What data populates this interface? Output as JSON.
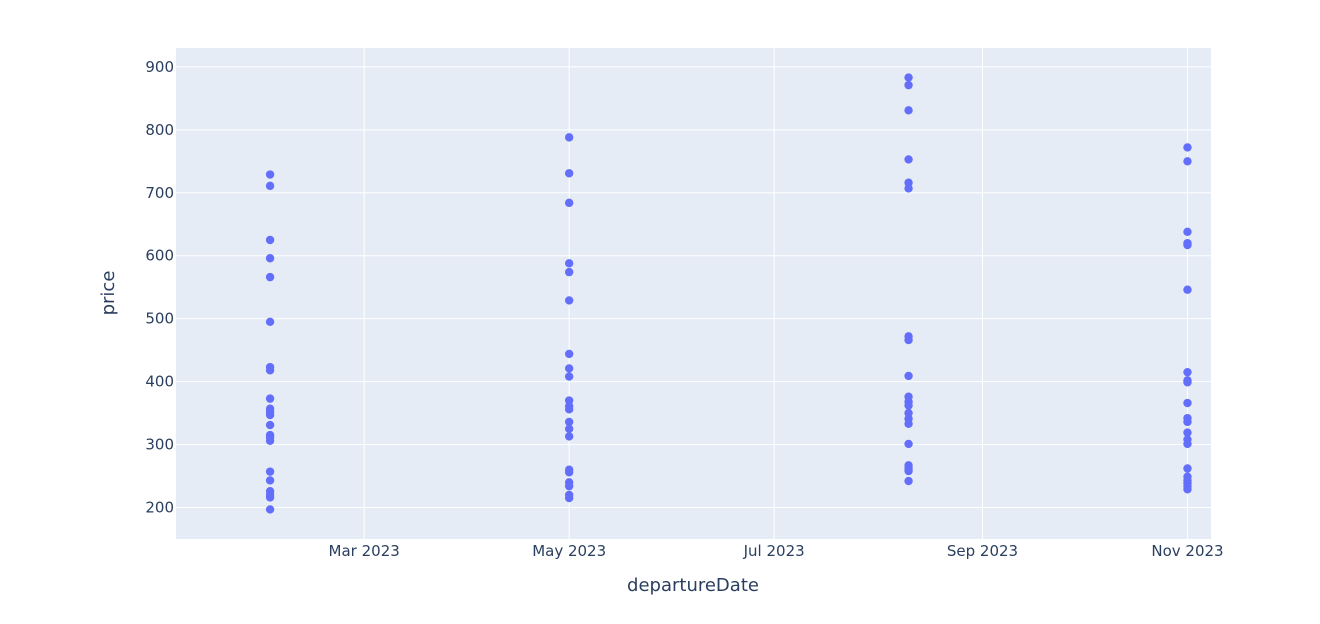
{
  "chart_data": {
    "type": "scatter",
    "title": "",
    "xlabel": "departureDate",
    "ylabel": "price",
    "xlim": [
      "2023-01-04",
      "2023-11-08"
    ],
    "ylim": [
      150,
      930
    ],
    "grid": true,
    "colors": {
      "marker": "#636efa",
      "plot_bg": "#e5ecf6",
      "grid": "#ffffff",
      "text": "#2a3f5f"
    },
    "x_ticks": [
      {
        "date": "2023-03-01",
        "label": "Mar 2023"
      },
      {
        "date": "2023-05-01",
        "label": "May 2023"
      },
      {
        "date": "2023-07-01",
        "label": "Jul 2023"
      },
      {
        "date": "2023-09-01",
        "label": "Sep 2023"
      },
      {
        "date": "2023-11-01",
        "label": "Nov 2023"
      }
    ],
    "y_ticks": [
      200,
      300,
      400,
      500,
      600,
      700,
      800,
      900
    ],
    "series": [
      {
        "points": [
          {
            "x": "2023-02-01",
            "y": 729
          },
          {
            "x": "2023-02-01",
            "y": 711
          },
          {
            "x": "2023-02-01",
            "y": 625
          },
          {
            "x": "2023-02-01",
            "y": 596
          },
          {
            "x": "2023-02-01",
            "y": 566
          },
          {
            "x": "2023-02-01",
            "y": 495
          },
          {
            "x": "2023-02-01",
            "y": 423
          },
          {
            "x": "2023-02-01",
            "y": 418
          },
          {
            "x": "2023-02-01",
            "y": 373
          },
          {
            "x": "2023-02-01",
            "y": 357
          },
          {
            "x": "2023-02-01",
            "y": 352
          },
          {
            "x": "2023-02-01",
            "y": 347
          },
          {
            "x": "2023-02-01",
            "y": 331
          },
          {
            "x": "2023-02-01",
            "y": 315
          },
          {
            "x": "2023-02-01",
            "y": 311
          },
          {
            "x": "2023-02-01",
            "y": 306
          },
          {
            "x": "2023-02-01",
            "y": 257
          },
          {
            "x": "2023-02-01",
            "y": 243
          },
          {
            "x": "2023-02-01",
            "y": 226
          },
          {
            "x": "2023-02-01",
            "y": 221
          },
          {
            "x": "2023-02-01",
            "y": 216
          },
          {
            "x": "2023-02-01",
            "y": 197
          },
          {
            "x": "2023-05-01",
            "y": 788
          },
          {
            "x": "2023-05-01",
            "y": 731
          },
          {
            "x": "2023-05-01",
            "y": 684
          },
          {
            "x": "2023-05-01",
            "y": 588
          },
          {
            "x": "2023-05-01",
            "y": 574
          },
          {
            "x": "2023-05-01",
            "y": 529
          },
          {
            "x": "2023-05-01",
            "y": 444
          },
          {
            "x": "2023-05-01",
            "y": 421
          },
          {
            "x": "2023-05-01",
            "y": 408
          },
          {
            "x": "2023-05-01",
            "y": 370
          },
          {
            "x": "2023-05-01",
            "y": 361
          },
          {
            "x": "2023-05-01",
            "y": 356
          },
          {
            "x": "2023-05-01",
            "y": 336
          },
          {
            "x": "2023-05-01",
            "y": 325
          },
          {
            "x": "2023-05-01",
            "y": 313
          },
          {
            "x": "2023-05-01",
            "y": 260
          },
          {
            "x": "2023-05-01",
            "y": 256
          },
          {
            "x": "2023-05-01",
            "y": 240
          },
          {
            "x": "2023-05-01",
            "y": 234
          },
          {
            "x": "2023-05-01",
            "y": 220
          },
          {
            "x": "2023-05-01",
            "y": 215
          },
          {
            "x": "2023-08-10",
            "y": 883
          },
          {
            "x": "2023-08-10",
            "y": 871
          },
          {
            "x": "2023-08-10",
            "y": 831
          },
          {
            "x": "2023-08-10",
            "y": 753
          },
          {
            "x": "2023-08-10",
            "y": 716
          },
          {
            "x": "2023-08-10",
            "y": 707
          },
          {
            "x": "2023-08-10",
            "y": 472
          },
          {
            "x": "2023-08-10",
            "y": 466
          },
          {
            "x": "2023-08-10",
            "y": 409
          },
          {
            "x": "2023-08-10",
            "y": 376
          },
          {
            "x": "2023-08-10",
            "y": 368
          },
          {
            "x": "2023-08-10",
            "y": 362
          },
          {
            "x": "2023-08-10",
            "y": 350
          },
          {
            "x": "2023-08-10",
            "y": 341
          },
          {
            "x": "2023-08-10",
            "y": 333
          },
          {
            "x": "2023-08-10",
            "y": 301
          },
          {
            "x": "2023-08-10",
            "y": 267
          },
          {
            "x": "2023-08-10",
            "y": 262
          },
          {
            "x": "2023-08-10",
            "y": 258
          },
          {
            "x": "2023-08-10",
            "y": 242
          },
          {
            "x": "2023-11-01",
            "y": 772
          },
          {
            "x": "2023-11-01",
            "y": 750
          },
          {
            "x": "2023-11-01",
            "y": 638
          },
          {
            "x": "2023-11-01",
            "y": 620
          },
          {
            "x": "2023-11-01",
            "y": 617
          },
          {
            "x": "2023-11-01",
            "y": 546
          },
          {
            "x": "2023-11-01",
            "y": 415
          },
          {
            "x": "2023-11-01",
            "y": 402
          },
          {
            "x": "2023-11-01",
            "y": 399
          },
          {
            "x": "2023-11-01",
            "y": 366
          },
          {
            "x": "2023-11-01",
            "y": 342
          },
          {
            "x": "2023-11-01",
            "y": 336
          },
          {
            "x": "2023-11-01",
            "y": 319
          },
          {
            "x": "2023-11-01",
            "y": 308
          },
          {
            "x": "2023-11-01",
            "y": 301
          },
          {
            "x": "2023-11-01",
            "y": 262
          },
          {
            "x": "2023-11-01",
            "y": 249
          },
          {
            "x": "2023-11-01",
            "y": 243
          },
          {
            "x": "2023-11-01",
            "y": 239
          },
          {
            "x": "2023-11-01",
            "y": 234
          },
          {
            "x": "2023-11-01",
            "y": 229
          }
        ]
      }
    ]
  }
}
